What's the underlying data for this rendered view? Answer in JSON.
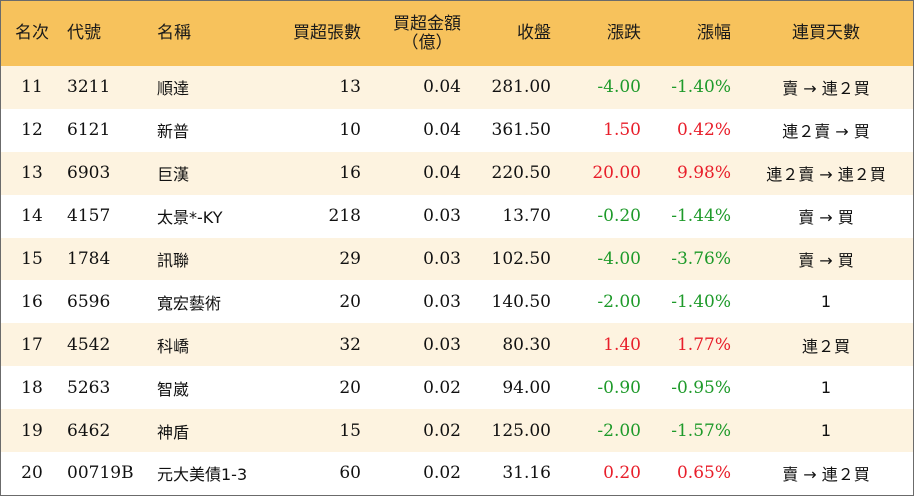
{
  "headers": {
    "rank": "名次",
    "code": "代號",
    "name": "名稱",
    "net_lots": "買超張數",
    "net_amount": "買超金額\n（億）",
    "close": "收盤",
    "change": "漲跌",
    "pct": "漲幅",
    "streak": "連買天數"
  },
  "colors": {
    "header_bg": "#f7c25c",
    "stripe_bg": "#fdf3e0",
    "up": "#e81e2a",
    "down": "#1e9a2a"
  },
  "rows": [
    {
      "rank": "11",
      "code": "3211",
      "name": "順達",
      "net_lots": "13",
      "net_amount": "0.04",
      "close": "281.00",
      "change": "-4.00",
      "pct": "-1.40%",
      "streak": "賣 → 連２買",
      "trend": "down"
    },
    {
      "rank": "12",
      "code": "6121",
      "name": "新普",
      "net_lots": "10",
      "net_amount": "0.04",
      "close": "361.50",
      "change": "1.50",
      "pct": "0.42%",
      "streak": "連２賣 → 買",
      "trend": "up"
    },
    {
      "rank": "13",
      "code": "6903",
      "name": "巨漢",
      "net_lots": "16",
      "net_amount": "0.04",
      "close": "220.50",
      "change": "20.00",
      "pct": "9.98%",
      "streak": "連２賣 → 連２買",
      "trend": "up"
    },
    {
      "rank": "14",
      "code": "4157",
      "name": "太景*-KY",
      "net_lots": "218",
      "net_amount": "0.03",
      "close": "13.70",
      "change": "-0.20",
      "pct": "-1.44%",
      "streak": "賣 → 買",
      "trend": "down"
    },
    {
      "rank": "15",
      "code": "1784",
      "name": "訊聯",
      "net_lots": "29",
      "net_amount": "0.03",
      "close": "102.50",
      "change": "-4.00",
      "pct": "-3.76%",
      "streak": "賣 → 買",
      "trend": "down"
    },
    {
      "rank": "16",
      "code": "6596",
      "name": "寬宏藝術",
      "net_lots": "20",
      "net_amount": "0.03",
      "close": "140.50",
      "change": "-2.00",
      "pct": "-1.40%",
      "streak": "1",
      "trend": "down"
    },
    {
      "rank": "17",
      "code": "4542",
      "name": "科嶠",
      "net_lots": "32",
      "net_amount": "0.03",
      "close": "80.30",
      "change": "1.40",
      "pct": "1.77%",
      "streak": "連２買",
      "trend": "up"
    },
    {
      "rank": "18",
      "code": "5263",
      "name": "智崴",
      "net_lots": "20",
      "net_amount": "0.02",
      "close": "94.00",
      "change": "-0.90",
      "pct": "-0.95%",
      "streak": "1",
      "trend": "down"
    },
    {
      "rank": "19",
      "code": "6462",
      "name": "神盾",
      "net_lots": "15",
      "net_amount": "0.02",
      "close": "125.00",
      "change": "-2.00",
      "pct": "-1.57%",
      "streak": "1",
      "trend": "down"
    },
    {
      "rank": "20",
      "code": "00719B",
      "name": "元大美債1-3",
      "net_lots": "60",
      "net_amount": "0.02",
      "close": "31.16",
      "change": "0.20",
      "pct": "0.65%",
      "streak": "賣 → 連２買",
      "trend": "up"
    }
  ]
}
